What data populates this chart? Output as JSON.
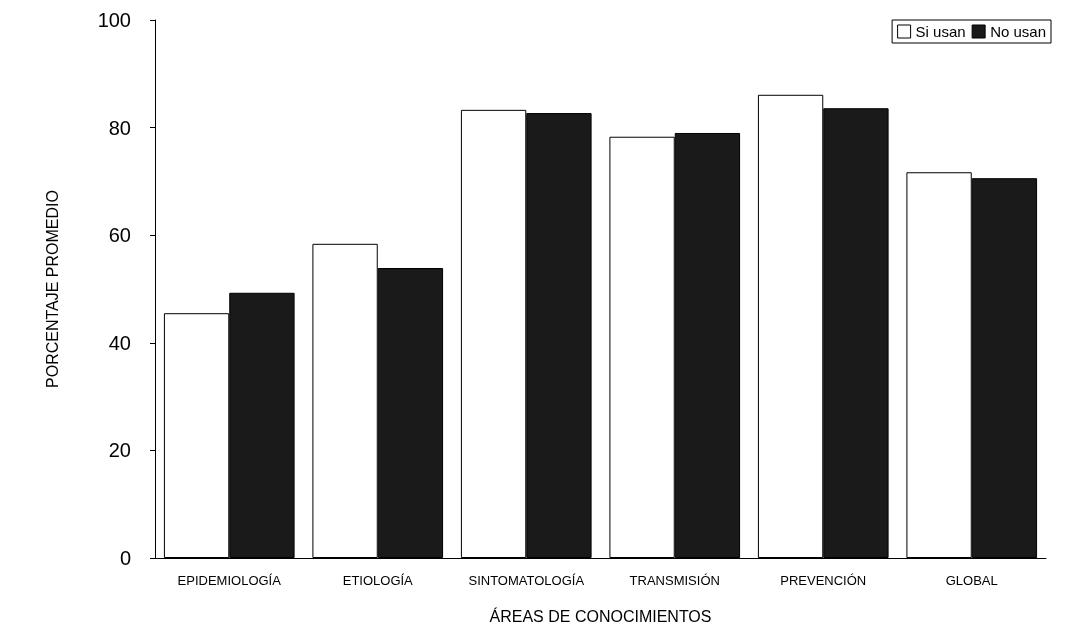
{
  "chart_data": {
    "type": "bar",
    "xlabel": "ÁREAS DE CONOCIMIENTOS",
    "ylabel": "PORCENTAJE PROMEDIO",
    "categories": [
      "EPIDEMIOLOGÍA",
      "ETIOLOGÍA",
      "SINTOMATOLOGÍA",
      "TRANSMISIÓN",
      "PREVENCIÓN",
      "GLOBAL"
    ],
    "series": [
      {
        "name": "Si usan",
        "color": "#ffffff",
        "values": [
          45.5,
          58.4,
          83.3,
          78.3,
          86.1,
          71.7
        ]
      },
      {
        "name": "No usan",
        "color": "#1a1a1a",
        "values": [
          49.3,
          53.9,
          82.7,
          79.0,
          83.6,
          70.6
        ]
      }
    ],
    "ylim": [
      0,
      100
    ],
    "yticks": [
      0,
      20,
      40,
      60,
      80,
      100
    ],
    "grid": false,
    "legend": "top right"
  }
}
